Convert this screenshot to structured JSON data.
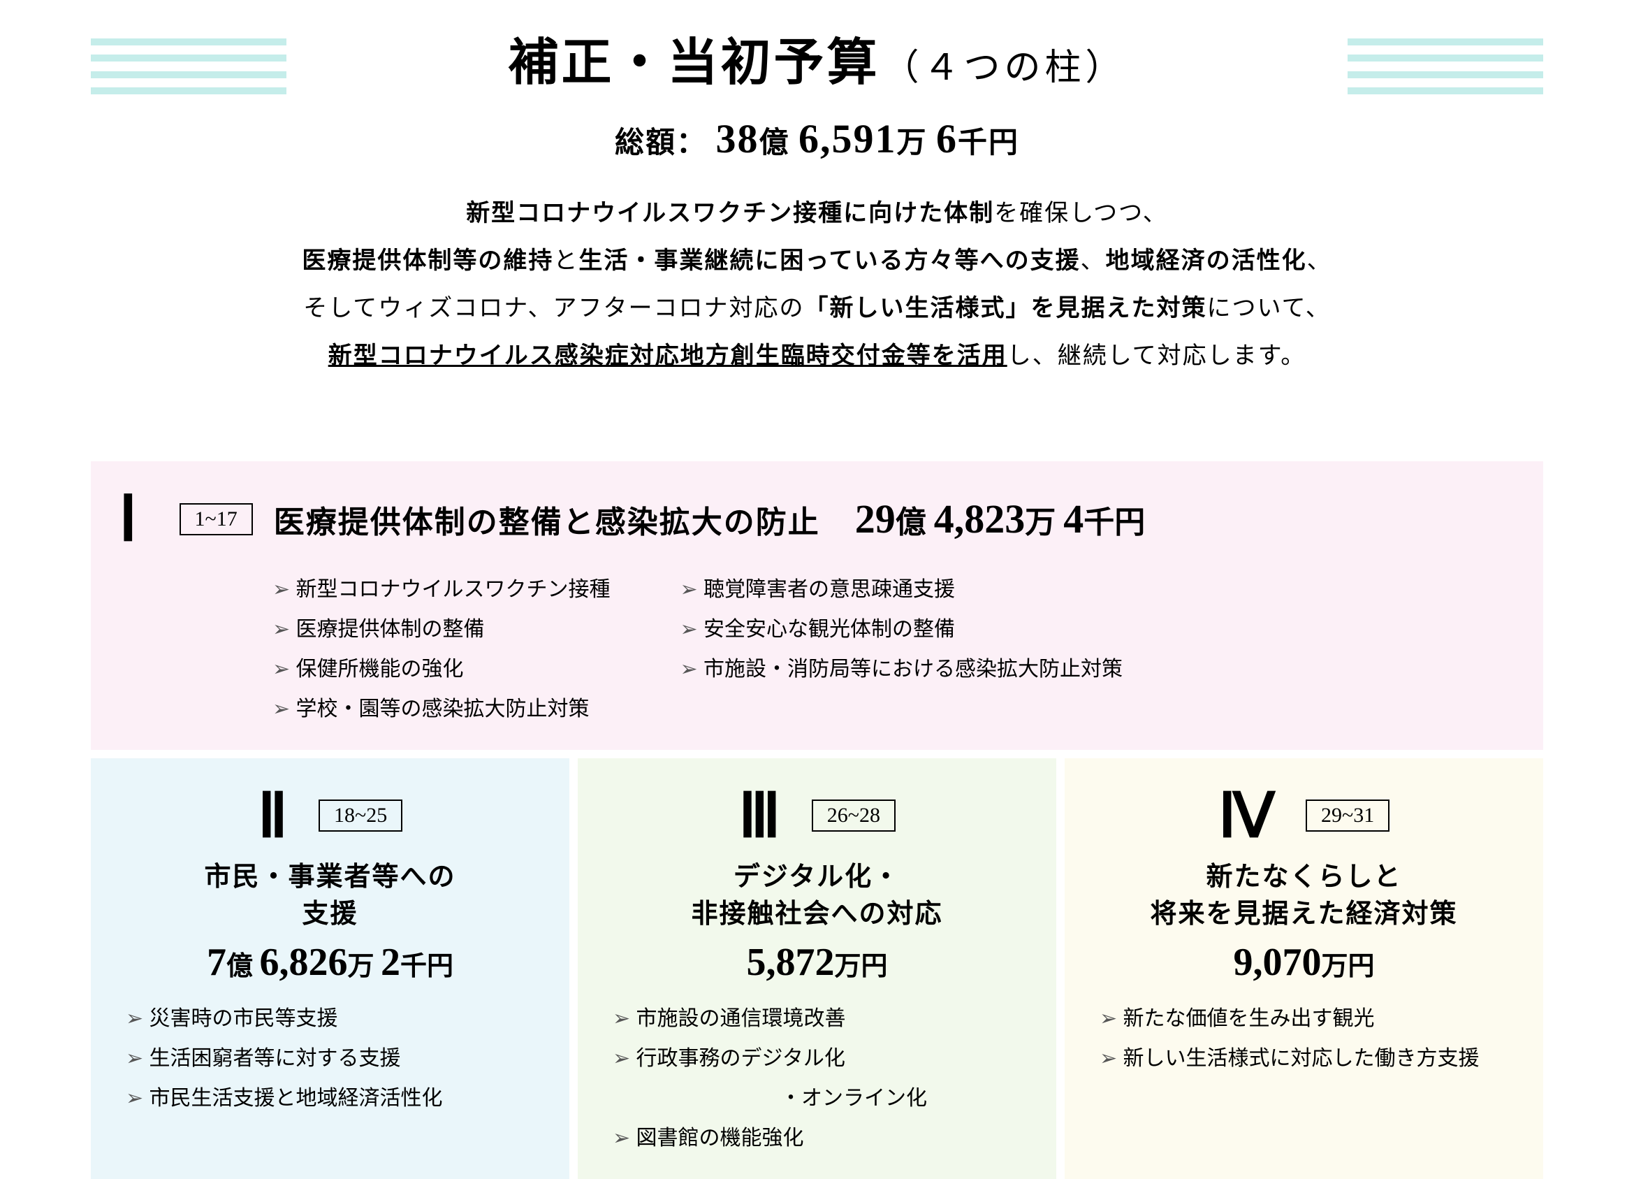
{
  "colors": {
    "stripe": "#c5edea",
    "p1_bg": "#fcf0f7",
    "p2_bg": "#eaf6fa",
    "p3_bg": "#f2f9ec",
    "p4_bg": "#fdfbef"
  },
  "typography": {
    "title_main_pt": 72,
    "title_sub_pt": 52,
    "total_big_pt": 58,
    "desc_pt": 34,
    "roman_pt": 90,
    "pillar_title_pt": 44,
    "bullet_pt": 30
  },
  "header": {
    "title_main": "補正・当初予算",
    "title_sub": "（４つの柱）",
    "total_label": "総額：",
    "total_oku": "38",
    "total_oku_unit": "億",
    "total_man": "6,591",
    "total_man_unit": "万",
    "total_sen": "6",
    "total_sen_unit": "千円"
  },
  "desc": {
    "l1a": "新型コロナウイルスワクチン接種に向けた体制",
    "l1b": "を確保しつつ、",
    "l2a": "医療提供体制等の維持",
    "l2b": "と",
    "l2c": "生活・事業継続に困っている方々等への支援",
    "l2d": "、",
    "l2e": "地域経済の活性化",
    "l2f": "、",
    "l3a": "そしてウィズコロナ、アフターコロナ対応の",
    "l3b": "「新しい生活様式」を見据えた対策",
    "l3c": "について、",
    "l4a": "新型コロナウイルス感染症対応地方創生臨時交付金等を活用",
    "l4b": "し、継続して対応します。"
  },
  "pillars": {
    "p1": {
      "roman": "Ⅰ",
      "range": "1~17",
      "title": "医療提供体制の整備と感染拡大の防止",
      "amount_oku": "29",
      "amount_oku_unit": "億",
      "amount_man": "4,823",
      "amount_man_unit": "万",
      "amount_sen": "4",
      "amount_sen_unit": "千円",
      "bullets_left": [
        "新型コロナウイルスワクチン接種",
        "医療提供体制の整備",
        "保健所機能の強化",
        "学校・園等の感染拡大防止対策"
      ],
      "bullets_right": [
        "聴覚障害者の意思疎通支援",
        "安全安心な観光体制の整備",
        "市施設・消防局等における感染拡大防止対策"
      ]
    },
    "p2": {
      "roman": "Ⅱ",
      "range": "18~25",
      "title_l1": "市民・事業者等への",
      "title_l2": "支援",
      "amount_oku": "7",
      "amount_oku_unit": "億",
      "amount_man": "6,826",
      "amount_man_unit": "万",
      "amount_sen": "2",
      "amount_sen_unit": "千円",
      "bullets": [
        "災害時の市民等支援",
        "生活困窮者等に対する支援",
        "市民生活支援と地域経済活性化"
      ]
    },
    "p3": {
      "roman": "Ⅲ",
      "range": "26~28",
      "title_l1": "デジタル化・",
      "title_l2": "非接触社会への対応",
      "amount_man": "5,872",
      "amount_man_unit": "万円",
      "bullets": [
        "市施設の通信環境改善",
        "行政事務のデジタル化",
        "図書館の機能強化"
      ],
      "bullet2_extra": "・オンライン化"
    },
    "p4": {
      "roman": "Ⅳ",
      "range": "29~31",
      "title_l1": "新たなくらしと",
      "title_l2": "将来を見据えた経済対策",
      "amount_man": "9,070",
      "amount_man_unit": "万円",
      "bullets": [
        "新たな価値を生み出す観光",
        "新しい生活様式に対応した働き方支援"
      ]
    }
  }
}
